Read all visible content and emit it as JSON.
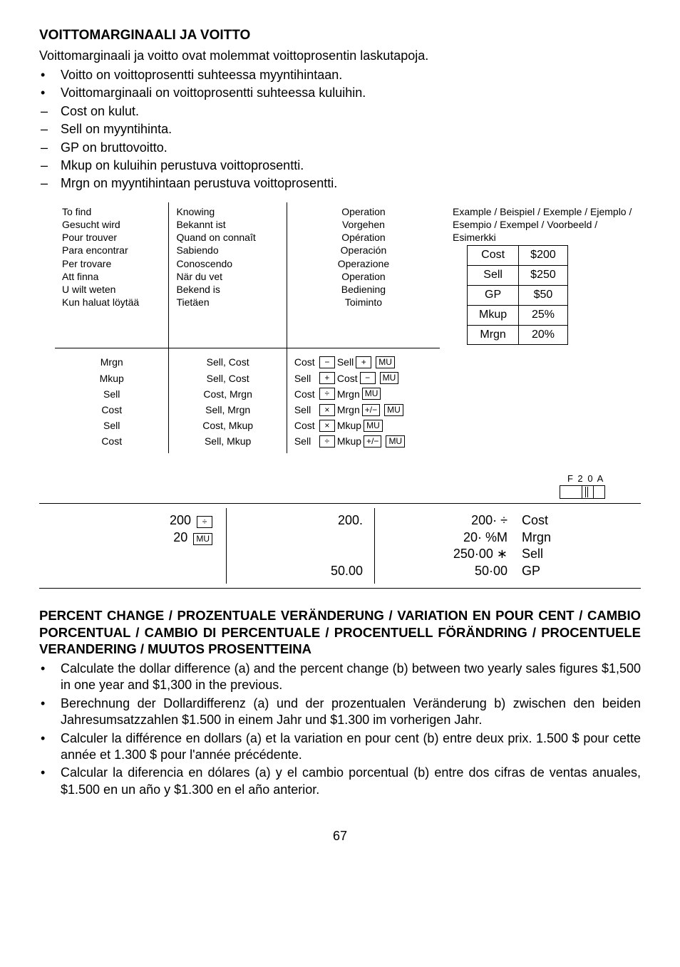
{
  "title": "VOITTOMARGINAALI JA VOITTO",
  "subtitle": "Voittomarginaali ja voitto ovat molemmat voittoprosentin laskutapoja.",
  "intro_bullets": [
    {
      "marker": "•",
      "text": "Voitto on voittoprosentti suhteessa myyntihintaan."
    },
    {
      "marker": "•",
      "text": "Voittomarginaali on voittoprosentti suhteessa kuluihin."
    },
    {
      "marker": "–",
      "text": "Cost on kulut."
    },
    {
      "marker": "–",
      "text": "Sell on myyntihinta."
    },
    {
      "marker": "–",
      "text": "GP on bruttovoitto."
    },
    {
      "marker": "–",
      "text": "Mkup on kuluihin perustuva voittoprosentti."
    },
    {
      "marker": "–",
      "text": "Mrgn on myyntihintaan perustuva voittoprosentti."
    }
  ],
  "lookup": {
    "find": [
      "To find",
      "Gesucht wird",
      "Pour trouver",
      "Para encontrar",
      "Per trovare",
      "Att finna",
      "U wilt weten",
      "Kun haluat löytää"
    ],
    "know": [
      "Knowing",
      "Bekannt ist",
      "Quand on connaît",
      "Sabiendo",
      "Conoscendo",
      "När du vet",
      "Bekend is",
      "Tietäen"
    ],
    "op": [
      "Operation",
      "Vorgehen",
      "Opération",
      "Operación",
      "Operazione",
      "Operation",
      "Bediening",
      "Toiminto"
    ],
    "ex_label": "Example / Beispiel / Exemple / Ejemplo / Esempio / Exempel / Voorbeeld / Esimerkki",
    "rows": [
      {
        "find": "Mrgn",
        "know": "Sell, Cost",
        "op": [
          "Cost",
          "−",
          "Sell",
          "+",
          "MU"
        ]
      },
      {
        "find": "Mkup",
        "know": "Sell, Cost",
        "op": [
          "Sell",
          "+",
          "Cost",
          "−",
          "MU"
        ]
      },
      {
        "find": "Sell",
        "know": "Cost, Mrgn",
        "op": [
          "Cost",
          "÷",
          "Mrgn",
          "MU"
        ]
      },
      {
        "find": "Cost",
        "know": "Sell, Mrgn",
        "op": [
          "Sell",
          "×",
          "Mrgn",
          "+/−",
          "MU"
        ]
      },
      {
        "find": "Sell",
        "know": "Cost, Mkup",
        "op": [
          "Cost",
          "×",
          "Mkup",
          "MU"
        ]
      },
      {
        "find": "Cost",
        "know": "Sell, Mkup",
        "op": [
          "Sell",
          "÷",
          "Mkup",
          "+/−",
          "MU"
        ]
      }
    ],
    "example_table": [
      [
        "Cost",
        "$200"
      ],
      [
        "Sell",
        "$250"
      ],
      [
        "GP",
        "$50"
      ],
      [
        "Mkup",
        "25%"
      ],
      [
        "Mrgn",
        "20%"
      ]
    ]
  },
  "switch": {
    "labels": [
      "F",
      "2",
      "0",
      "A"
    ]
  },
  "worked": {
    "inputs": [
      {
        "val": "200",
        "key": "÷"
      },
      {
        "val": "20",
        "key": "MU"
      }
    ],
    "mids": [
      "200.",
      "",
      "",
      "50.00"
    ],
    "outputs": [
      {
        "val": "200·  ÷",
        "label": "Cost"
      },
      {
        "val": "20·  %M",
        "label": "Mrgn"
      },
      {
        "val": "250·00  ∗",
        "label": "Sell"
      },
      {
        "val": "50·00",
        "label": "GP"
      }
    ]
  },
  "section_heading": "PERCENT CHANGE / PROZENTUALE VERÄNDERUNG / VARIATION EN POUR CENT / CAMBIO PORCENTUAL / CAMBIO DI PERCENTUALE / PROCENTUELL FÖRÄNDRING / PROCENTUELE VERANDERING / MUUTOS PROSENTTEINA",
  "body_bullets": [
    "Calculate the dollar difference (a) and the percent change (b) between two yearly sales figures $1,500 in one year and $1,300 in the previous.",
    "Berechnung der Dollardifferenz (a) und der prozentualen Veränderung b) zwischen den beiden Jahresumsatzzahlen $1.500 in einem Jahr und $1.300 im vorherigen Jahr.",
    "Calculer la différence en dollars (a) et la variation en pour cent (b) entre deux prix. 1.500 $ pour cette année et 1.300 $ pour l'année précédente.",
    "Calcular la diferencia en dólares (a) y el cambio porcentual (b) entre dos cifras de ventas anuales, $1.500 en un año y $1.300 en el año anterior."
  ],
  "page_number": "67"
}
